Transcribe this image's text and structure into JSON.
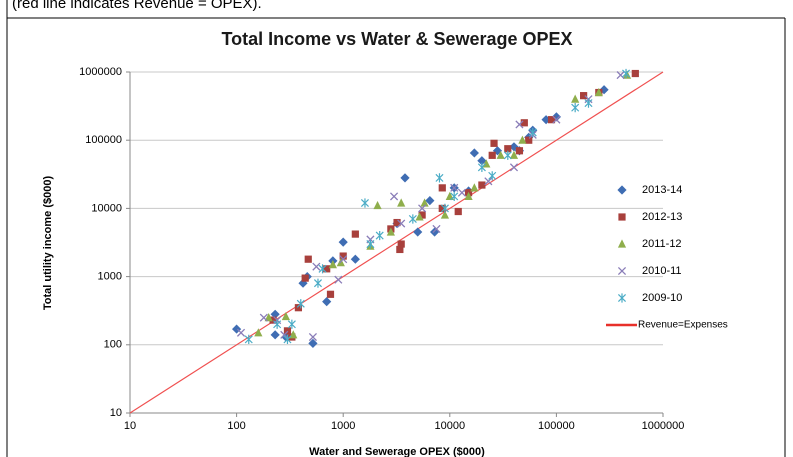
{
  "note": "(red line indicates Revenue = OPEX).",
  "chart_data": {
    "type": "scatter",
    "title": "Total Income vs Water & Sewerage OPEX",
    "x_label": "Water and Sewerage OPEX ($000)",
    "y_label": "Total utility income ($000)",
    "x_scale": "log",
    "y_scale": "log",
    "xlim": [
      10,
      1000000
    ],
    "ylim": [
      10,
      1000000
    ],
    "xticks": [
      10,
      100,
      1000,
      10000,
      100000,
      1000000
    ],
    "yticks": [
      10,
      100,
      1000,
      10000,
      100000,
      1000000
    ],
    "grid": "y",
    "legend": "right",
    "series": [
      {
        "name": "2013-14",
        "color": "#3f6db3",
        "marker": "diamond",
        "x": [
          100,
          230,
          230,
          290,
          520,
          420,
          460,
          700,
          800,
          1000,
          1300,
          3800,
          3200,
          5000,
          7200,
          6500,
          11000,
          17000,
          20000,
          28000,
          40000,
          55000,
          80000,
          100000,
          280000,
          60000,
          45000,
          15000
        ],
        "values": [
          170,
          280,
          140,
          130,
          105,
          800,
          1000,
          430,
          1700,
          3200,
          1800,
          28000,
          6000,
          4500,
          4500,
          13000,
          20000,
          65000,
          50000,
          70000,
          80000,
          110000,
          200000,
          220000,
          550000,
          140000,
          70000,
          18000
        ]
      },
      {
        "name": "2012-13",
        "color": "#a8403c",
        "marker": "square",
        "x": [
          220,
          300,
          330,
          380,
          440,
          470,
          700,
          760,
          1000,
          1300,
          2800,
          3400,
          3500,
          3200,
          5500,
          8500,
          8500,
          12000,
          15000,
          20000,
          25000,
          26000,
          35000,
          50000,
          55000,
          90000,
          180000,
          250000,
          550000,
          45000
        ],
        "values": [
          230,
          160,
          130,
          350,
          950,
          1800,
          1300,
          550,
          2000,
          4200,
          5000,
          2500,
          3000,
          6200,
          8000,
          10000,
          20000,
          9000,
          17000,
          22000,
          60000,
          90000,
          75000,
          180000,
          100000,
          200000,
          450000,
          500000,
          950000,
          70000
        ]
      },
      {
        "name": "2011-12",
        "color": "#8fae4c",
        "marker": "triangle",
        "x": [
          160,
          200,
          290,
          340,
          800,
          950,
          1800,
          2100,
          2800,
          3500,
          5200,
          5800,
          9000,
          10000,
          15000,
          17000,
          22000,
          30000,
          40000,
          48000,
          150000,
          250000,
          460000
        ],
        "values": [
          150,
          250,
          260,
          140,
          1500,
          1600,
          2800,
          11000,
          4500,
          12000,
          7500,
          12000,
          8000,
          15000,
          15000,
          20000,
          45000,
          60000,
          60000,
          100000,
          400000,
          500000,
          900000
        ]
      },
      {
        "name": "2010-11",
        "color": "#8a7db8",
        "marker": "x",
        "x": [
          110,
          180,
          240,
          280,
          520,
          560,
          900,
          1000,
          1800,
          3000,
          3500,
          5500,
          7500,
          11000,
          13000,
          23000,
          40000,
          45000,
          60000,
          100000,
          200000,
          400000
        ],
        "values": [
          150,
          250,
          230,
          140,
          130,
          1400,
          900,
          1800,
          3500,
          15000,
          6000,
          10000,
          5000,
          20000,
          17000,
          25000,
          40000,
          170000,
          120000,
          200000,
          400000,
          900000
        ]
      },
      {
        "name": "2009-10",
        "color": "#4bacc6",
        "marker": "star",
        "x": [
          130,
          240,
          300,
          330,
          400,
          580,
          640,
          1600,
          1800,
          2200,
          4500,
          8000,
          9000,
          11000,
          20000,
          25000,
          35000,
          60000,
          150000,
          200000,
          450000
        ],
        "values": [
          120,
          200,
          120,
          200,
          400,
          800,
          1300,
          12000,
          3000,
          4000,
          7000,
          28000,
          10000,
          15000,
          40000,
          30000,
          60000,
          130000,
          300000,
          350000,
          950000
        ]
      }
    ],
    "reference_line": {
      "name": "Revenue=Expenses",
      "color": "#f05050",
      "x": [
        10,
        1000000
      ],
      "values": [
        10,
        1000000
      ]
    }
  }
}
